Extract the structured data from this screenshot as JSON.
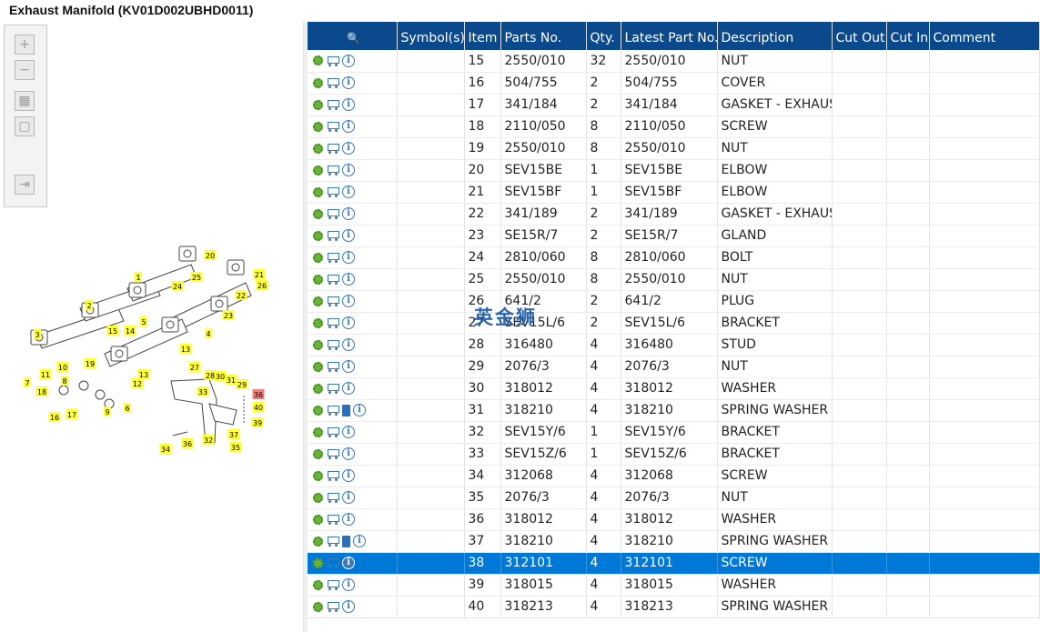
{
  "window": {
    "title": "Exhaust Manifold (KV01D002UBHD0011)"
  },
  "toolbar": [
    {
      "name": "zoom-in-button",
      "icon": "plus-icon",
      "glyph": "+"
    },
    {
      "name": "zoom-out-button",
      "icon": "minus-icon",
      "glyph": "−"
    },
    {
      "name": "fit-all-button",
      "icon": "grid-icon",
      "glyph": "▦"
    },
    {
      "name": "fit-page-button",
      "icon": "square-icon",
      "glyph": "▢"
    },
    {
      "name": "export-button",
      "icon": "export-icon",
      "glyph": "⇥"
    }
  ],
  "diagram": {
    "callouts": [
      "20",
      "25",
      "1",
      "24",
      "21",
      "26",
      "22",
      "2",
      "23",
      "5",
      "4",
      "3",
      "15",
      "14",
      "13",
      "11",
      "10",
      "7",
      "19",
      "12",
      "13",
      "27",
      "28",
      "30",
      "31",
      "29",
      "36",
      "18",
      "16",
      "17",
      "9",
      "6",
      "33",
      "40",
      "39",
      "37",
      "34",
      "36",
      "32",
      "35",
      "8"
    ]
  },
  "watermark": "英金狮",
  "grid": {
    "headers": [
      "",
      "Symbol(s)",
      "Item",
      "Parts No.",
      "Qty.",
      "Latest Part No.",
      "Description",
      "Cut Out",
      "Cut In",
      "Comment"
    ],
    "header_icon": "search-filter-icon",
    "rows": [
      {
        "item": "15",
        "part": "2550/010",
        "qty": "32",
        "latest": "2550/010",
        "desc": "NUT",
        "book": false
      },
      {
        "item": "16",
        "part": "504/755",
        "qty": "2",
        "latest": "504/755",
        "desc": "COVER",
        "book": false
      },
      {
        "item": "17",
        "part": "341/184",
        "qty": "2",
        "latest": "341/184",
        "desc": "GASKET - EXHAUS",
        "book": false
      },
      {
        "item": "18",
        "part": "2110/050",
        "qty": "8",
        "latest": "2110/050",
        "desc": "SCREW",
        "book": false
      },
      {
        "item": "19",
        "part": "2550/010",
        "qty": "8",
        "latest": "2550/010",
        "desc": "NUT",
        "book": false
      },
      {
        "item": "20",
        "part": "SEV15BE",
        "qty": "1",
        "latest": "SEV15BE",
        "desc": "ELBOW",
        "book": false
      },
      {
        "item": "21",
        "part": "SEV15BF",
        "qty": "1",
        "latest": "SEV15BF",
        "desc": "ELBOW",
        "book": false
      },
      {
        "item": "22",
        "part": "341/189",
        "qty": "2",
        "latest": "341/189",
        "desc": "GASKET - EXHAUS",
        "book": false
      },
      {
        "item": "23",
        "part": "SE15R/7",
        "qty": "2",
        "latest": "SE15R/7",
        "desc": "GLAND",
        "book": false
      },
      {
        "item": "24",
        "part": "2810/060",
        "qty": "8",
        "latest": "2810/060",
        "desc": "BOLT",
        "book": false
      },
      {
        "item": "25",
        "part": "2550/010",
        "qty": "8",
        "latest": "2550/010",
        "desc": "NUT",
        "book": false
      },
      {
        "item": "26",
        "part": "641/2",
        "qty": "2",
        "latest": "641/2",
        "desc": "PLUG",
        "book": false
      },
      {
        "item": "27",
        "part": "SEV15L/6",
        "qty": "2",
        "latest": "SEV15L/6",
        "desc": "BRACKET",
        "book": false
      },
      {
        "item": "28",
        "part": "316480",
        "qty": "4",
        "latest": "316480",
        "desc": "STUD",
        "book": false
      },
      {
        "item": "29",
        "part": "2076/3",
        "qty": "4",
        "latest": "2076/3",
        "desc": "NUT",
        "book": false
      },
      {
        "item": "30",
        "part": "318012",
        "qty": "4",
        "latest": "318012",
        "desc": "WASHER",
        "book": false
      },
      {
        "item": "31",
        "part": "318210",
        "qty": "4",
        "latest": "318210",
        "desc": "SPRING WASHER",
        "book": true
      },
      {
        "item": "32",
        "part": "SEV15Y/6",
        "qty": "1",
        "latest": "SEV15Y/6",
        "desc": "BRACKET",
        "book": false
      },
      {
        "item": "33",
        "part": "SEV15Z/6",
        "qty": "1",
        "latest": "SEV15Z/6",
        "desc": "BRACKET",
        "book": false
      },
      {
        "item": "34",
        "part": "312068",
        "qty": "4",
        "latest": "312068",
        "desc": "SCREW",
        "book": false
      },
      {
        "item": "35",
        "part": "2076/3",
        "qty": "4",
        "latest": "2076/3",
        "desc": "NUT",
        "book": false
      },
      {
        "item": "36",
        "part": "318012",
        "qty": "4",
        "latest": "318012",
        "desc": "WASHER",
        "book": false
      },
      {
        "item": "37",
        "part": "318210",
        "qty": "4",
        "latest": "318210",
        "desc": "SPRING WASHER",
        "book": true
      },
      {
        "item": "38",
        "part": "312101",
        "qty": "4",
        "latest": "312101",
        "desc": "SCREW",
        "book": false,
        "selected": true
      },
      {
        "item": "39",
        "part": "318015",
        "qty": "4",
        "latest": "318015",
        "desc": "WASHER",
        "book": false
      },
      {
        "item": "40",
        "part": "318213",
        "qty": "4",
        "latest": "318213",
        "desc": "SPRING WASHER",
        "book": false
      }
    ]
  },
  "colors": {
    "header_bg": "#0a4a8c",
    "selected_row": "#0078d7",
    "callout": "#ffff33",
    "callout_highlight": "#f08080"
  }
}
